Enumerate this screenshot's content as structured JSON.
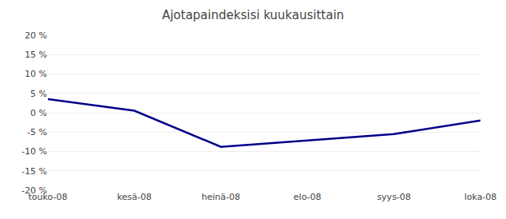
{
  "chart_data": {
    "type": "line",
    "title": "Ajotapaindeksisi kuukausittain",
    "categories": [
      "touko-08",
      "kesä-08",
      "heinä-08",
      "elo-08",
      "syys-08",
      "loka-08"
    ],
    "values": [
      3.5,
      0.5,
      -8.8,
      -7.2,
      -5.5,
      -2.0
    ],
    "color": "#00008B",
    "ylim": [
      -20,
      20
    ],
    "yticks": [
      {
        "value": -20,
        "label": "-20 %"
      },
      {
        "value": -15,
        "label": "-15 %"
      },
      {
        "value": -10,
        "label": "-10 %"
      },
      {
        "value": -5,
        "label": "-5 %"
      },
      {
        "value": 0,
        "label": "0 %"
      },
      {
        "value": 5,
        "label": "5 %"
      },
      {
        "value": 10,
        "label": "10 %"
      },
      {
        "value": 15,
        "label": "15 %"
      },
      {
        "value": 20,
        "label": "20 %"
      }
    ],
    "grid": true
  }
}
